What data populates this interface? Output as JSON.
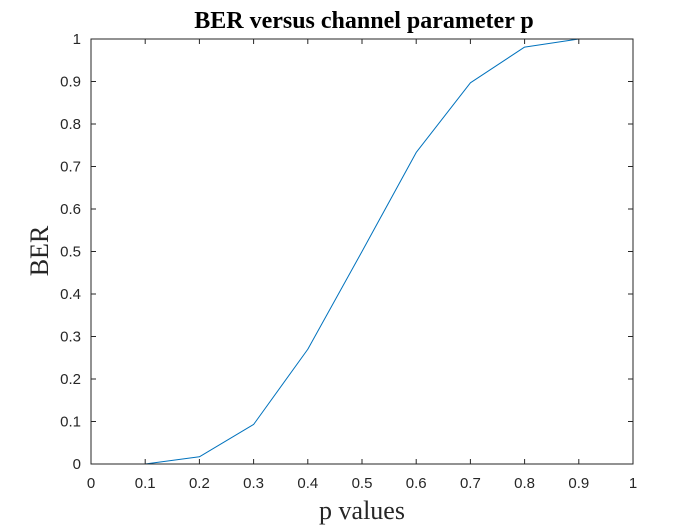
{
  "chart_data": {
    "type": "line",
    "title": "BER versus channel parameter p",
    "xlabel": "p values",
    "ylabel": "BER",
    "xlim": [
      0,
      1
    ],
    "ylim": [
      0,
      1
    ],
    "xticks": [
      0,
      0.1,
      0.2,
      0.3,
      0.4,
      0.5,
      0.6,
      0.7,
      0.8,
      0.9,
      1
    ],
    "xtick_labels": [
      "0",
      "0.1",
      "0.2",
      "0.3",
      "0.4",
      "0.5",
      "0.6",
      "0.7",
      "0.8",
      "0.9",
      "1"
    ],
    "yticks": [
      0,
      0.1,
      0.2,
      0.3,
      0.4,
      0.5,
      0.6,
      0.7,
      0.8,
      0.9,
      1
    ],
    "ytick_labels": [
      "0",
      "0.1",
      "0.2",
      "0.3",
      "0.4",
      "0.5",
      "0.6",
      "0.7",
      "0.8",
      "0.9",
      "1"
    ],
    "grid": false,
    "legend": "none",
    "series": [
      {
        "color": "#0072bd",
        "x": [
          0,
          0.1,
          0.2,
          0.3,
          0.4,
          0.5,
          0.6,
          0.7,
          0.8,
          0.9,
          1
        ],
        "y": [
          0,
          0,
          0.017,
          0.093,
          0.27,
          0.5,
          0.733,
          0.897,
          0.981,
          1,
          1
        ]
      }
    ]
  },
  "colors": {
    "axis": "#262626",
    "line": "#0072bd",
    "background": "#ffffff"
  }
}
